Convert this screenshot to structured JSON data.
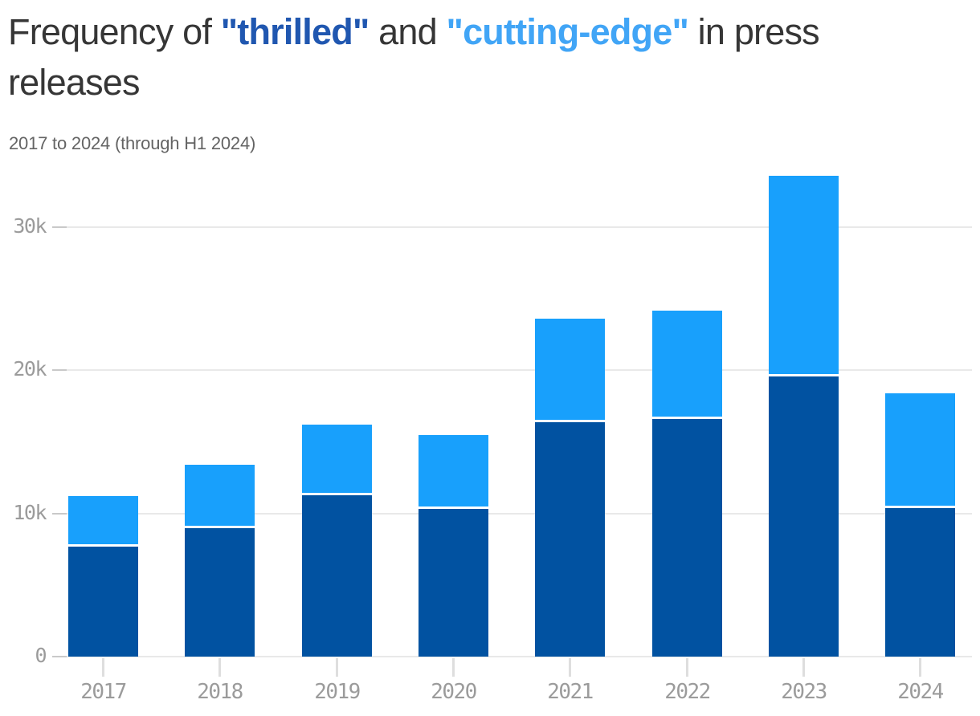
{
  "header": {
    "title_prefix": "Frequency of ",
    "term1": "\"thrilled\"",
    "title_middle": " and ",
    "term2": "\"cutting-edge\"",
    "title_suffix": " in press",
    "title_line2": "releases",
    "subtitle": "2017 to 2024 (through H1 2024)"
  },
  "colors": {
    "title_text": "#363636",
    "term1_text": "#2057b0",
    "term2_text": "#41a5f6",
    "subtitle_text": "#646464",
    "bar_thrilled": "#0152a1",
    "bar_cutting_edge": "#18a0fc",
    "gridline": "#e9e9e9",
    "grid_tick": "#c9c9c9",
    "axis_label": "#9b9b9b",
    "segment_divider": "#ffffff"
  },
  "chart_data": {
    "type": "bar",
    "stacked": true,
    "title": "Frequency of \"thrilled\" and \"cutting-edge\" in press releases",
    "subtitle": "2017 to 2024 (through H1 2024)",
    "categories": [
      "2017",
      "2018",
      "2019",
      "2020",
      "2021",
      "2022",
      "2023",
      "2024"
    ],
    "series": [
      {
        "name": "thrilled",
        "color": "#0152a1",
        "values": [
          7700,
          9000,
          11300,
          10300,
          16400,
          16600,
          19600,
          10400
        ]
      },
      {
        "name": "cutting-edge",
        "color": "#18a0fc",
        "values": [
          3500,
          4400,
          4900,
          5200,
          7200,
          7600,
          14000,
          8000
        ]
      }
    ],
    "totals": [
      11200,
      13400,
      16200,
      15500,
      23600,
      24200,
      33600,
      18400
    ],
    "xlabel": "",
    "ylabel": "",
    "ylim": [
      0,
      34000
    ],
    "y_ticks": [
      {
        "value": 0,
        "label": "0"
      },
      {
        "value": 10000,
        "label": "10k"
      },
      {
        "value": 20000,
        "label": "20k"
      },
      {
        "value": 30000,
        "label": "30k"
      }
    ],
    "grid": "horizontal gridlines on",
    "legend": "none (series encoded by colored words in title)"
  }
}
